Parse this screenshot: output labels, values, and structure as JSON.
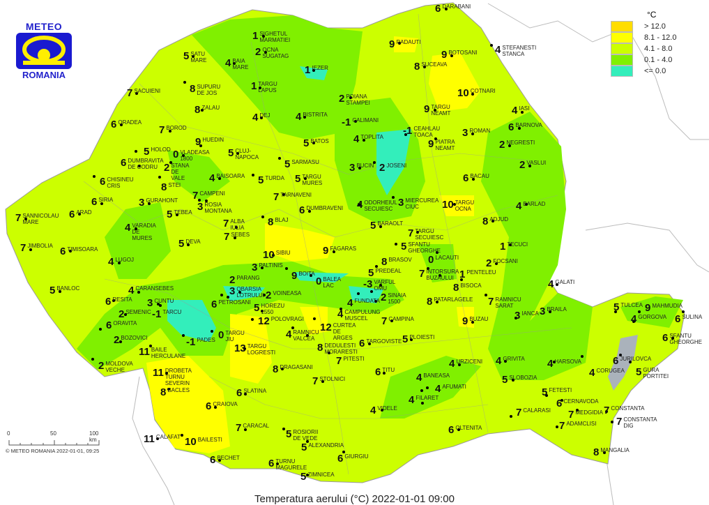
{
  "logo": {
    "top": "METEO",
    "bottom": "ROMANIA"
  },
  "title": "Temperatura aerului (°C) 2022-01-01 09:00",
  "copyright": "© METEO ROMANIA 2022-01-01, 09:25",
  "scale_bar": {
    "ticks": [
      "0",
      "50",
      "100 km"
    ]
  },
  "legend": {
    "unit": "°C",
    "classes": [
      {
        "label": "> 12.0",
        "color": "#ffdd00"
      },
      {
        "label": "8.1 - 12.0",
        "color": "#ffff00"
      },
      {
        "label": "4.1 - 8.0",
        "color": "#ccff00"
      },
      {
        "label": "0.1 - 4.0",
        "color": "#80f000"
      },
      {
        "label": "<= 0.0",
        "color": "#33eebb"
      }
    ]
  },
  "colors": {
    "water": "#aab2bb",
    "border": "#888888"
  },
  "stations": [
    {
      "name": "SIGHETUL MARMATIEI",
      "value": "1"
    },
    {
      "name": "OCNA SUGATAG",
      "value": "2"
    },
    {
      "name": "SATU MARE",
      "value": "5"
    },
    {
      "name": "BAIA MARE",
      "value": "4"
    },
    {
      "name": "SUPURU DE JOS",
      "value": "8"
    },
    {
      "name": "TARGU LAPUS",
      "value": "1"
    },
    {
      "name": "IEZER",
      "value": "1"
    },
    {
      "name": "SACUIENI",
      "value": "7"
    },
    {
      "name": "ZALAU",
      "value": "8"
    },
    {
      "name": "DEJ",
      "value": "4"
    },
    {
      "name": "BISTRITA",
      "value": "4"
    },
    {
      "name": "POIANA STAMPEI",
      "value": "2"
    },
    {
      "name": "CALIMANI",
      "value": "-1"
    },
    {
      "name": "DARABANI",
      "value": "6"
    },
    {
      "name": "RADAUTI",
      "value": "9"
    },
    {
      "name": "BOTOSANI",
      "value": "9"
    },
    {
      "name": "STEFANESTI STANCA",
      "value": "4"
    },
    {
      "name": "SUCEAVA",
      "value": "8"
    },
    {
      "name": "COTNARI",
      "value": "10"
    },
    {
      "name": "TARGU NEAMT",
      "value": "9"
    },
    {
      "name": "IASI",
      "value": "4"
    },
    {
      "name": "BARNOVA",
      "value": "6"
    },
    {
      "name": "CEAHLAU TOACA",
      "value": "-1"
    },
    {
      "name": "TOPLITA",
      "value": "4"
    },
    {
      "name": "PIATRA NEAMT",
      "value": "9"
    },
    {
      "name": "ROMAN",
      "value": "3"
    },
    {
      "name": "NEGRESTI",
      "value": "2"
    },
    {
      "name": "JOSENI",
      "value": "2"
    },
    {
      "name": "VASLUI",
      "value": "2"
    },
    {
      "name": "BACAU",
      "value": "6"
    },
    {
      "name": "MIERCUREA CIUC",
      "value": "3"
    },
    {
      "name": "ODORHEIUL SECUIESC",
      "value": "4"
    },
    {
      "name": "TARGU OCNA",
      "value": "10"
    },
    {
      "name": "BARLAD",
      "value": "4"
    },
    {
      "name": "ADJUD",
      "value": "8"
    },
    {
      "name": "BARAOLT",
      "value": "5"
    },
    {
      "name": "TARGU SECUIESC",
      "value": "7"
    },
    {
      "name": "SFANTU GHEORGHE",
      "value": "5"
    },
    {
      "name": "LACAUTI",
      "value": "0"
    },
    {
      "name": "TECUCI",
      "value": "1"
    },
    {
      "name": "FOCSANI",
      "value": "2"
    },
    {
      "name": "INTORSURA BUZAULUI",
      "value": "7"
    },
    {
      "name": "PENTELEU",
      "value": "1"
    },
    {
      "name": "BISOCA",
      "value": "8"
    },
    {
      "name": "GALATI",
      "value": "4"
    },
    {
      "name": "RAMNICU SARAT",
      "value": "7"
    },
    {
      "name": "PATARLAGELE",
      "value": "8"
    },
    {
      "name": "BUZAU",
      "value": "9"
    },
    {
      "name": "IANCA",
      "value": "3"
    },
    {
      "name": "BRAILA",
      "value": "3"
    },
    {
      "name": "TULCEA",
      "value": "5"
    },
    {
      "name": "GORGOVA",
      "value": "4"
    },
    {
      "name": "MAHMUDIA",
      "value": "9"
    },
    {
      "name": "SULINA",
      "value": "6"
    },
    {
      "name": "SFANTU GHEORGHE",
      "value": "6"
    },
    {
      "name": "JURILOVCA",
      "value": "6"
    },
    {
      "name": "GURA PORTITEI",
      "value": "5"
    },
    {
      "name": "CORUGEA",
      "value": "4"
    },
    {
      "name": "HARSOVA",
      "value": "4"
    },
    {
      "name": "GRIVITA",
      "value": "4"
    },
    {
      "name": "URZICENI",
      "value": "4"
    },
    {
      "name": "SLOBOZIA",
      "value": "5"
    },
    {
      "name": "FETESTI",
      "value": "5"
    },
    {
      "name": "CERNAVODA",
      "value": "6"
    },
    {
      "name": "MEDGIDIA",
      "value": "7"
    },
    {
      "name": "CONSTANTA",
      "value": "7"
    },
    {
      "name": "CONSTANTA DIG",
      "value": "7"
    },
    {
      "name": "CALARASI",
      "value": "7"
    },
    {
      "name": "ADAMCLISI",
      "value": "7"
    },
    {
      "name": "OLTENITA",
      "value": "6"
    },
    {
      "name": "MANGALIA",
      "value": "8"
    },
    {
      "name": "AFUMATI",
      "value": "4"
    },
    {
      "name": "BANEASA",
      "value": "4"
    },
    {
      "name": "FILARET",
      "value": "4"
    },
    {
      "name": "VIDELE",
      "value": "4"
    },
    {
      "name": "TITU",
      "value": "6"
    },
    {
      "name": "PLOIESTI",
      "value": "5"
    },
    {
      "name": "CAMPINA",
      "value": "7"
    },
    {
      "name": "TARGOVISTE",
      "value": "6"
    },
    {
      "name": "SINAIA 1500",
      "value": "2"
    },
    {
      "name": "FUNDATA",
      "value": "4"
    },
    {
      "name": "CAMPULUNG MUSCEL",
      "value": "4"
    },
    {
      "name": "BRASOV",
      "value": "8"
    },
    {
      "name": "BALEA LAC",
      "value": "0"
    },
    {
      "name": "BOITA",
      "value": "9"
    },
    {
      "name": "PALTINIS",
      "value": "3"
    },
    {
      "name": "SIBIU",
      "value": "10"
    },
    {
      "name": "FAGARAS",
      "value": "9"
    },
    {
      "name": "CURTEA DE ARGES",
      "value": "12"
    },
    {
      "name": "RAMNICU VALCEA",
      "value": "4"
    },
    {
      "name": "DEDULESTI MORARESTI",
      "value": "8"
    },
    {
      "name": "HOREZU 1550",
      "value": "5"
    },
    {
      "name": "POLOVRAGI",
      "value": "12"
    },
    {
      "name": "TARGU LOGRESTI",
      "value": "13"
    },
    {
      "name": "DRAGASANI",
      "value": "8"
    },
    {
      "name": "PITESTI",
      "value": "7"
    },
    {
      "name": "STOLNICI",
      "value": "7"
    },
    {
      "name": "OBARSIA LOTRULUI",
      "value": "3"
    },
    {
      "name": "VOINEASA",
      "value": "2"
    },
    {
      "name": "PETROSANI",
      "value": "6"
    },
    {
      "name": "PARANG",
      "value": "2"
    },
    {
      "name": "TARGU JIU",
      "value": "0"
    },
    {
      "name": "PADES",
      "value": "-1"
    },
    {
      "name": "CUNTU",
      "value": "3"
    },
    {
      "name": "TARCU",
      "value": "-1"
    },
    {
      "name": "CARANSEBES",
      "value": "4"
    },
    {
      "name": "RESITA",
      "value": "6"
    },
    {
      "name": "BANLOC",
      "value": "5"
    },
    {
      "name": "SEMENIC",
      "value": "2"
    },
    {
      "name": "ORAVITA",
      "value": "6"
    },
    {
      "name": "BOZOVICI",
      "value": "2"
    },
    {
      "name": "MOLDOVA VECHE",
      "value": "2"
    },
    {
      "name": "BAILE HERCULANE",
      "value": "11"
    },
    {
      "name": "DROBETA TURNU SEVERIN",
      "value": "11"
    },
    {
      "name": "BACLES",
      "value": "8"
    },
    {
      "name": "CALAFAT",
      "value": "11"
    },
    {
      "name": "BAILESTI",
      "value": "10"
    },
    {
      "name": "CRAIOVA",
      "value": "6"
    },
    {
      "name": "CARACAL",
      "value": "7"
    },
    {
      "name": "SLATINA",
      "value": "6"
    },
    {
      "name": "BECHET",
      "value": "6"
    },
    {
      "name": "ROSIORII DE VEDE",
      "value": "5"
    },
    {
      "name": "ALEXANDRIA",
      "value": "5"
    },
    {
      "name": "TURNU MAGURELE",
      "value": "6"
    },
    {
      "name": "ZIMNICEA",
      "value": "5"
    },
    {
      "name": "GIURGIU",
      "value": "6"
    },
    {
      "name": "JIMBOLIA",
      "value": "7"
    },
    {
      "name": "TIMISOARA",
      "value": "6"
    },
    {
      "name": "LUGOJ",
      "value": "4"
    },
    {
      "name": "DEVA",
      "value": "5"
    },
    {
      "name": "SEBES",
      "value": "7"
    },
    {
      "name": "ALBA IULIA",
      "value": "7"
    },
    {
      "name": "BLAJ",
      "value": "8"
    },
    {
      "name": "TARNAVENI",
      "value": "7"
    },
    {
      "name": "DUMBRAVENI",
      "value": "6"
    },
    {
      "name": "TARGU MURES",
      "value": "5"
    },
    {
      "name": "TURDA",
      "value": "5"
    },
    {
      "name": "SARMASU",
      "value": "5"
    },
    {
      "name": "BATOS",
      "value": "5"
    },
    {
      "name": "CLUJ-NAPOCA",
      "value": "5"
    },
    {
      "name": "HUEDIN",
      "value": "9"
    },
    {
      "name": "VLADEASA 1800",
      "value": "0"
    },
    {
      "name": "STANA DE VALE",
      "value": "2"
    },
    {
      "name": "HOLOD",
      "value": "5"
    },
    {
      "name": "DUMBRAVITA DE CODRU",
      "value": "6"
    },
    {
      "name": "STEI",
      "value": "8"
    },
    {
      "name": "CHISINEU CRIS",
      "value": "6"
    },
    {
      "name": "BAISOARA",
      "value": "4"
    },
    {
      "name": "CAMPENI",
      "value": "7"
    },
    {
      "name": "ROSIA MONTANA",
      "value": "3"
    },
    {
      "name": "SIRIA",
      "value": "6"
    },
    {
      "name": "GURAHONT",
      "value": "3"
    },
    {
      "name": "SANNICOLAU MARE",
      "value": "7"
    },
    {
      "name": "ARAD",
      "value": "6"
    },
    {
      "name": "TEBEA",
      "value": "5"
    },
    {
      "name": "VARADIA DE MURES",
      "value": "4"
    },
    {
      "name": "ORADEA",
      "value": "6"
    },
    {
      "name": "BOROD",
      "value": "7"
    },
    {
      "name": "BUCIN",
      "value": "3"
    },
    {
      "name": "VARFUL OMU",
      "value": "-3"
    },
    {
      "name": "PREDEAL",
      "value": "5"
    }
  ]
}
